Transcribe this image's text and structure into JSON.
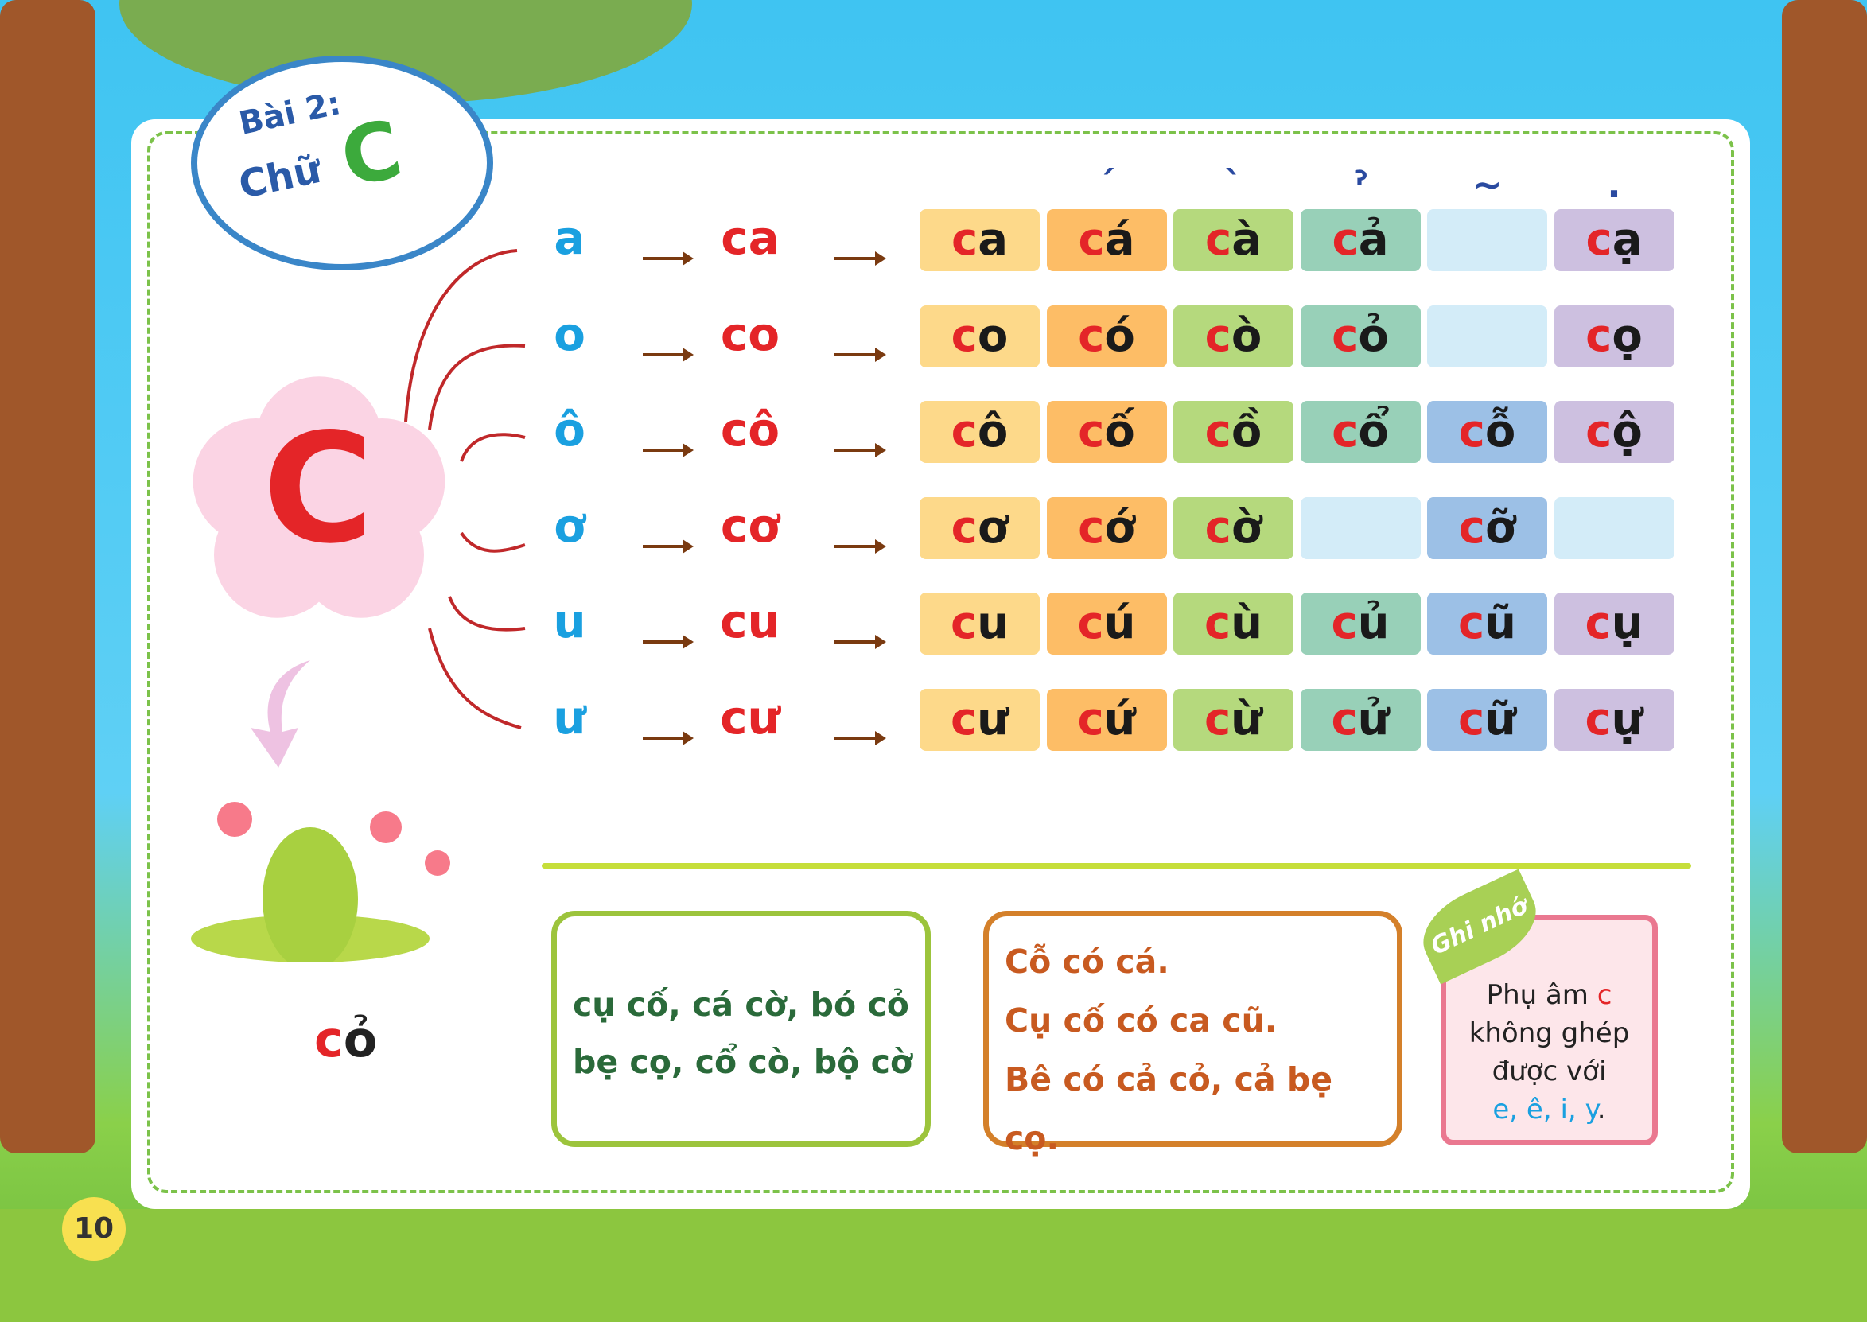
{
  "title": {
    "lesson": "Bài 2:",
    "word": "Chữ",
    "letter": "C"
  },
  "big_letter": "C",
  "tones": [
    "ˊ",
    "ˋ",
    "ˀ",
    "~",
    "."
  ],
  "rows": [
    {
      "vowel": "a",
      "syllable": "ca",
      "cells": [
        "ca",
        "cá",
        "cà",
        "cả",
        "",
        "cạ"
      ]
    },
    {
      "vowel": "o",
      "syllable": "co",
      "cells": [
        "co",
        "có",
        "cò",
        "cỏ",
        "",
        "cọ"
      ]
    },
    {
      "vowel": "ô",
      "syllable": "cô",
      "cells": [
        "cô",
        "cố",
        "cồ",
        "cổ",
        "cỗ",
        "cộ"
      ]
    },
    {
      "vowel": "ơ",
      "syllable": "cơ",
      "cells": [
        "cơ",
        "cớ",
        "cờ",
        "",
        "cỡ",
        ""
      ]
    },
    {
      "vowel": "u",
      "syllable": "cu",
      "cells": [
        "cu",
        "cú",
        "cù",
        "củ",
        "cũ",
        "cụ"
      ]
    },
    {
      "vowel": "ư",
      "syllable": "cư",
      "cells": [
        "cư",
        "cứ",
        "cừ",
        "cử",
        "cữ",
        "cự"
      ]
    }
  ],
  "cell_colors": [
    "#fdd98a",
    "#fdbd66",
    "#b5d97d",
    "#98d0b8",
    "#d3ecf8",
    "#cdc0e0"
  ],
  "tone_cell_colors": {
    "empty_tilde": "#d3ecf8",
    "filled_tilde": "#9cc0e6"
  },
  "picture_word": "cỏ",
  "words": {
    "line1": "cụ cố, cá cờ, bó cỏ",
    "line2": "bẹ cọ, cổ cò, bộ cờ"
  },
  "sentences": [
    "Cỗ có cá.",
    "Cụ cố có ca cũ.",
    "Bê có cả cỏ, cả bẹ cọ."
  ],
  "note": {
    "tag": "Ghi nhớ",
    "line1": "Phụ âm ",
    "consonant": "c",
    "line2": "không ghép",
    "line3": "được với",
    "letters": "e, ê, i, y",
    "end": "."
  },
  "page_number": "10"
}
